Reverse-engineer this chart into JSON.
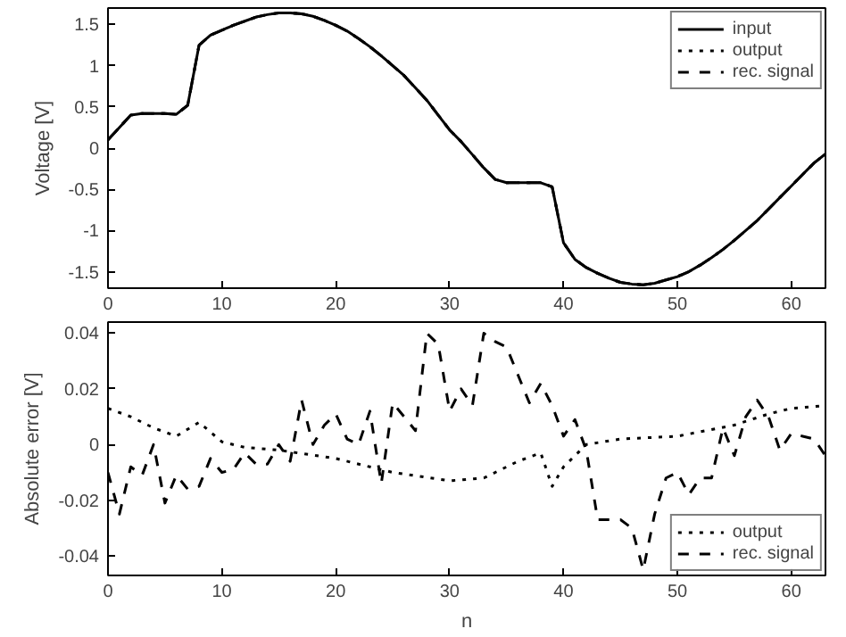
{
  "chart_data": [
    {
      "type": "line",
      "ylabel": "Voltage [V]",
      "x": [
        0,
        1,
        2,
        3,
        4,
        5,
        6,
        7,
        8,
        9,
        10,
        11,
        12,
        13,
        14,
        15,
        16,
        17,
        18,
        19,
        20,
        21,
        22,
        23,
        24,
        25,
        26,
        27,
        28,
        29,
        30,
        31,
        32,
        33,
        34,
        35,
        36,
        37,
        38,
        39,
        40,
        41,
        42,
        43,
        44,
        45,
        46,
        47,
        48,
        49,
        50,
        51,
        52,
        53,
        54,
        55,
        56,
        57,
        58,
        59,
        60,
        61,
        62,
        63
      ],
      "series": [
        {
          "name": "input",
          "color": "#000000",
          "line_style": "solid",
          "values": [
            0.1,
            0.25,
            0.4,
            0.42,
            0.42,
            0.42,
            0.41,
            0.52,
            1.25,
            1.37,
            1.43,
            1.49,
            1.54,
            1.59,
            1.62,
            1.64,
            1.64,
            1.63,
            1.6,
            1.55,
            1.49,
            1.42,
            1.33,
            1.23,
            1.12,
            1.0,
            0.88,
            0.73,
            0.58,
            0.4,
            0.22,
            0.08,
            -0.08,
            -0.24,
            -0.38,
            -0.42,
            -0.42,
            -0.42,
            -0.42,
            -0.47,
            -1.15,
            -1.35,
            -1.45,
            -1.52,
            -1.58,
            -1.63,
            -1.65,
            -1.66,
            -1.64,
            -1.6,
            -1.56,
            -1.5,
            -1.42,
            -1.33,
            -1.23,
            -1.12,
            -1.0,
            -0.88,
            -0.74,
            -0.6,
            -0.46,
            -0.32,
            -0.18,
            -0.07
          ]
        },
        {
          "name": "output",
          "color": "#000000",
          "line_style": "dotted",
          "values": [
            0.1,
            0.25,
            0.4,
            0.42,
            0.42,
            0.42,
            0.41,
            0.52,
            1.25,
            1.37,
            1.43,
            1.49,
            1.54,
            1.59,
            1.62,
            1.64,
            1.64,
            1.63,
            1.6,
            1.55,
            1.49,
            1.42,
            1.33,
            1.23,
            1.12,
            1.0,
            0.88,
            0.73,
            0.58,
            0.4,
            0.22,
            0.08,
            -0.08,
            -0.24,
            -0.38,
            -0.42,
            -0.42,
            -0.42,
            -0.42,
            -0.47,
            -1.15,
            -1.35,
            -1.45,
            -1.52,
            -1.58,
            -1.63,
            -1.65,
            -1.66,
            -1.64,
            -1.6,
            -1.56,
            -1.5,
            -1.42,
            -1.33,
            -1.23,
            -1.12,
            -1.0,
            -0.88,
            -0.74,
            -0.6,
            -0.46,
            -0.32,
            -0.18,
            -0.07
          ]
        },
        {
          "name": "rec. signal",
          "color": "#000000",
          "line_style": "dashed",
          "values": [
            0.1,
            0.25,
            0.4,
            0.42,
            0.42,
            0.42,
            0.41,
            0.52,
            1.25,
            1.37,
            1.43,
            1.49,
            1.54,
            1.59,
            1.62,
            1.64,
            1.64,
            1.63,
            1.6,
            1.55,
            1.49,
            1.42,
            1.33,
            1.23,
            1.12,
            1.0,
            0.88,
            0.73,
            0.58,
            0.4,
            0.22,
            0.08,
            -0.08,
            -0.24,
            -0.38,
            -0.42,
            -0.42,
            -0.42,
            -0.42,
            -0.47,
            -1.15,
            -1.35,
            -1.45,
            -1.52,
            -1.58,
            -1.63,
            -1.65,
            -1.66,
            -1.64,
            -1.6,
            -1.56,
            -1.5,
            -1.42,
            -1.33,
            -1.23,
            -1.12,
            -1.0,
            -0.88,
            -0.74,
            -0.6,
            -0.46,
            -0.32,
            -0.18,
            -0.07
          ]
        }
      ],
      "xlim": [
        0,
        63
      ],
      "xticks": [
        0,
        10,
        20,
        30,
        40,
        50,
        60
      ],
      "ylim": [
        -1.7,
        1.7
      ],
      "yticks": [
        -1.5,
        -1,
        -0.5,
        0,
        0.5,
        1,
        1.5
      ],
      "grid": false,
      "legend": "top right"
    },
    {
      "type": "line",
      "xlabel": "n",
      "ylabel": "Absolute error [V]",
      "series": [
        {
          "name": "output",
          "color": "#000000",
          "line_style": "dotted",
          "x": [
            0,
            2,
            4,
            6,
            8,
            10,
            12,
            15,
            20,
            25,
            30,
            33,
            36,
            38,
            39,
            40,
            42,
            45,
            50,
            55,
            58,
            60,
            63
          ],
          "values": [
            0.013,
            0.01,
            0.006,
            0.003,
            0.008,
            0.001,
            -0.001,
            -0.002,
            -0.005,
            -0.01,
            -0.013,
            -0.012,
            -0.006,
            -0.003,
            -0.015,
            -0.008,
            0.0,
            0.002,
            0.003,
            0.007,
            0.011,
            0.013,
            0.014
          ]
        },
        {
          "name": "rec. signal",
          "color": "#000000",
          "line_style": "dashed",
          "x": [
            0,
            1,
            2,
            3,
            4,
            5,
            6,
            7,
            8,
            9,
            10,
            11,
            12,
            13,
            14,
            15,
            16,
            17,
            18,
            19,
            20,
            21,
            22,
            23,
            24,
            25,
            26,
            27,
            28,
            29,
            30,
            31,
            32,
            33,
            34,
            35,
            36,
            37,
            38,
            39,
            40,
            41,
            42,
            43,
            44,
            45,
            46,
            47,
            48,
            49,
            50,
            51,
            52,
            53,
            54,
            55,
            56,
            57,
            58,
            59,
            60,
            61,
            62,
            63
          ],
          "values": [
            -0.01,
            -0.025,
            -0.008,
            -0.011,
            0.0,
            -0.021,
            -0.011,
            -0.016,
            -0.015,
            -0.005,
            -0.01,
            -0.009,
            -0.003,
            -0.007,
            -0.007,
            0.0,
            -0.006,
            0.016,
            0.0,
            0.007,
            0.011,
            0.002,
            0.0,
            0.012,
            -0.014,
            0.015,
            0.01,
            0.005,
            0.04,
            0.036,
            0.012,
            0.02,
            0.014,
            0.04,
            0.037,
            0.035,
            0.025,
            0.015,
            0.022,
            0.014,
            0.003,
            0.009,
            -0.002,
            -0.027,
            -0.027,
            -0.027,
            -0.03,
            -0.045,
            -0.025,
            -0.012,
            -0.01,
            -0.018,
            -0.012,
            -0.012,
            0.006,
            -0.004,
            0.01,
            0.016,
            0.01,
            -0.002,
            0.004,
            0.003,
            0.002,
            -0.004
          ]
        }
      ],
      "xlim": [
        0,
        63
      ],
      "xticks": [
        0,
        10,
        20,
        30,
        40,
        50,
        60
      ],
      "ylim": [
        -0.047,
        0.044
      ],
      "yticks": [
        -0.04,
        -0.02,
        0,
        0.02,
        0.04
      ],
      "grid": false,
      "legend": "bottom right"
    }
  ]
}
